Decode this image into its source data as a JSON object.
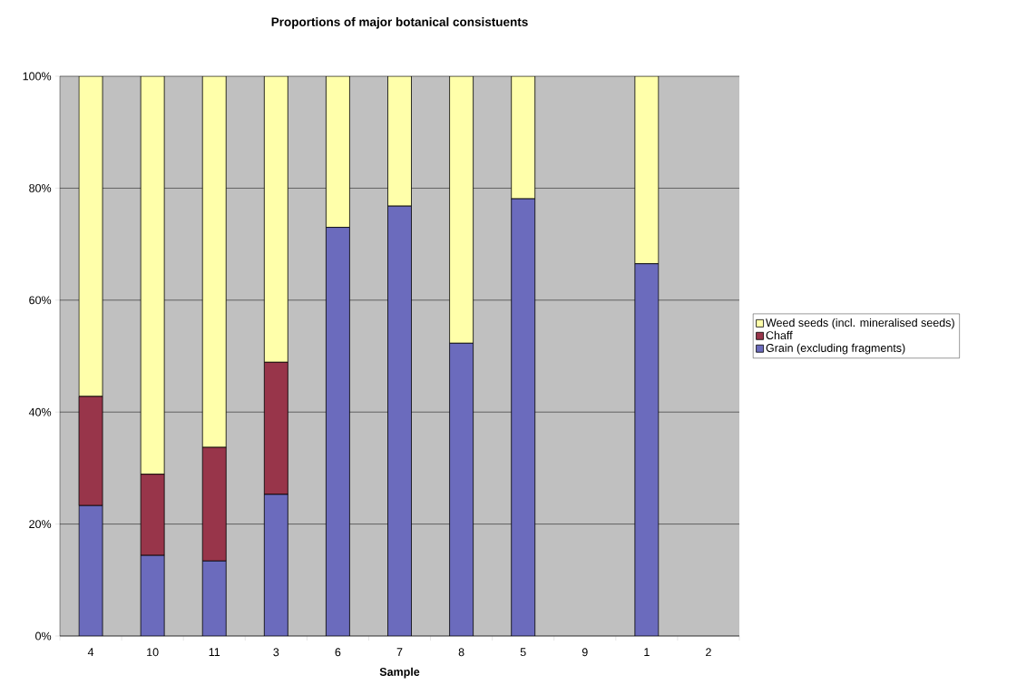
{
  "chart_data": {
    "type": "bar",
    "stacked": true,
    "title": "Proportions of major botanical consistuents",
    "xlabel": "Sample",
    "categories": [
      "4",
      "10",
      "11",
      "3",
      "6",
      "7",
      "8",
      "5",
      "9",
      "1",
      "2"
    ],
    "series": [
      {
        "name": "Grain (excluding fragments)",
        "color": "#6b6bbd",
        "values": [
          23.3,
          14.4,
          13.4,
          25.3,
          73.0,
          76.8,
          52.3,
          78.1,
          null,
          66.5,
          null
        ]
      },
      {
        "name": "Chaff",
        "color": "#98354a",
        "values": [
          19.5,
          14.5,
          20.3,
          23.6,
          0,
          0,
          0,
          0,
          null,
          0,
          null
        ]
      },
      {
        "name": "Weed seeds (incl. mineralised seeds)",
        "color": "#ffffaa",
        "values": [
          57.2,
          71.1,
          66.3,
          51.1,
          27.0,
          23.2,
          47.7,
          21.9,
          null,
          33.5,
          null
        ]
      }
    ],
    "ylim": [
      0,
      100
    ],
    "yticks": [
      {
        "value": 0,
        "label": "0%"
      },
      {
        "value": 20,
        "label": "20%"
      },
      {
        "value": 40,
        "label": "40%"
      },
      {
        "value": 60,
        "label": "60%"
      },
      {
        "value": 80,
        "label": "80%"
      },
      {
        "value": 100,
        "label": "100%"
      }
    ],
    "grid": "y",
    "legend": "right"
  }
}
